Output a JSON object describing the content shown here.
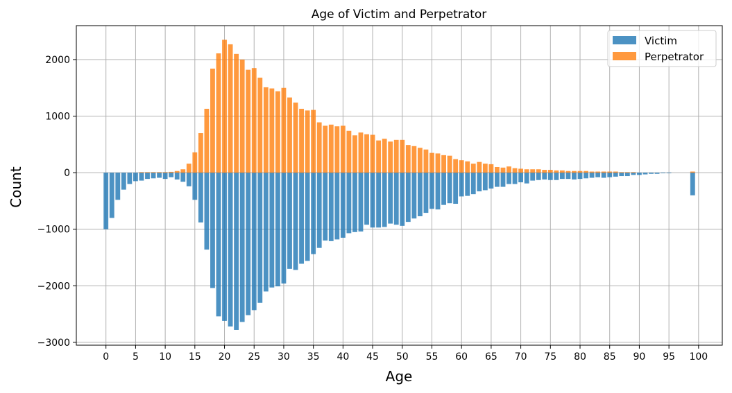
{
  "chart_data": {
    "type": "bar",
    "title": "Age of Victim and Perpetrator",
    "xlabel": "Age",
    "ylabel": "Count",
    "xlim": [
      -5,
      104
    ],
    "ylim": [
      -3050,
      2600
    ],
    "xticks": [
      0,
      5,
      10,
      15,
      20,
      25,
      30,
      35,
      40,
      45,
      50,
      55,
      60,
      65,
      70,
      75,
      80,
      85,
      90,
      95,
      100
    ],
    "yticks": [
      -3000,
      -2000,
      -1000,
      0,
      1000,
      2000
    ],
    "grid": true,
    "legend_position": "top-right",
    "x": [
      0,
      1,
      2,
      3,
      4,
      5,
      6,
      7,
      8,
      9,
      10,
      11,
      12,
      13,
      14,
      15,
      16,
      17,
      18,
      19,
      20,
      21,
      22,
      23,
      24,
      25,
      26,
      27,
      28,
      29,
      30,
      31,
      32,
      33,
      34,
      35,
      36,
      37,
      38,
      39,
      40,
      41,
      42,
      43,
      44,
      45,
      46,
      47,
      48,
      49,
      50,
      51,
      52,
      53,
      54,
      55,
      56,
      57,
      58,
      59,
      60,
      61,
      62,
      63,
      64,
      65,
      66,
      67,
      68,
      69,
      70,
      71,
      72,
      73,
      74,
      75,
      76,
      77,
      78,
      79,
      80,
      81,
      82,
      83,
      84,
      85,
      86,
      87,
      88,
      89,
      90,
      91,
      92,
      93,
      94,
      95,
      96,
      97,
      98,
      99
    ],
    "series": [
      {
        "name": "Victim",
        "color": "#1f77b4",
        "values": [
          -1000,
          -800,
          -480,
          -300,
          -200,
          -150,
          -140,
          -110,
          -100,
          -90,
          -110,
          -80,
          -120,
          -160,
          -240,
          -480,
          -880,
          -1360,
          -2040,
          -2540,
          -2620,
          -2720,
          -2780,
          -2640,
          -2520,
          -2430,
          -2300,
          -2100,
          -2030,
          -2010,
          -1960,
          -1700,
          -1720,
          -1610,
          -1560,
          -1440,
          -1330,
          -1200,
          -1210,
          -1180,
          -1150,
          -1070,
          -1050,
          -1040,
          -920,
          -970,
          -970,
          -960,
          -900,
          -920,
          -940,
          -870,
          -810,
          -770,
          -710,
          -640,
          -650,
          -570,
          -540,
          -550,
          -420,
          -410,
          -380,
          -330,
          -310,
          -280,
          -250,
          -250,
          -200,
          -200,
          -170,
          -190,
          -140,
          -130,
          -120,
          -130,
          -130,
          -110,
          -110,
          -120,
          -110,
          -100,
          -90,
          -80,
          -90,
          -80,
          -70,
          -60,
          -60,
          -40,
          -40,
          -30,
          -20,
          -20,
          -10,
          -10,
          0,
          0,
          0,
          -400
        ]
      },
      {
        "name": "Perpetrator",
        "color": "#ff7f0e",
        "values": [
          0,
          0,
          0,
          0,
          0,
          0,
          10,
          10,
          10,
          10,
          10,
          15,
          30,
          60,
          160,
          360,
          700,
          1130,
          1840,
          2110,
          2350,
          2270,
          2100,
          2000,
          1820,
          1850,
          1680,
          1510,
          1490,
          1440,
          1500,
          1330,
          1240,
          1130,
          1100,
          1110,
          890,
          830,
          850,
          820,
          830,
          740,
          660,
          710,
          680,
          670,
          570,
          600,
          550,
          580,
          580,
          490,
          470,
          440,
          410,
          350,
          340,
          310,
          300,
          240,
          220,
          200,
          160,
          190,
          160,
          150,
          100,
          90,
          110,
          80,
          70,
          60,
          60,
          60,
          50,
          50,
          40,
          40,
          30,
          30,
          30,
          30,
          20,
          20,
          20,
          20,
          20,
          10,
          10,
          10,
          0,
          0,
          0,
          0,
          0,
          0,
          0,
          0,
          0,
          20
        ]
      }
    ]
  }
}
